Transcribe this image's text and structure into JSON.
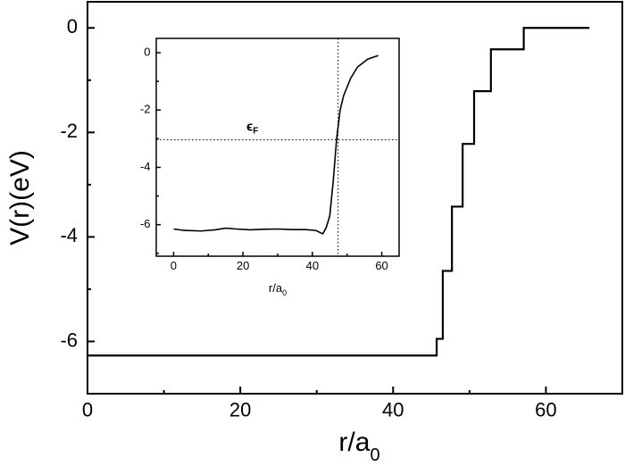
{
  "chart_data": [
    {
      "type": "line",
      "step": true,
      "xlabel": "r/a",
      "xlabel_sub": "0",
      "ylabel": "V(r)(eV)",
      "x": [
        0,
        45.7,
        45.7,
        46.5,
        46.5,
        47.7,
        47.7,
        49.1,
        49.1,
        50.6,
        50.6,
        52.8,
        52.8,
        57.1,
        57.1,
        65.7
      ],
      "values": [
        -6.27,
        -6.27,
        -5.95,
        -5.95,
        -4.65,
        -4.65,
        -3.42,
        -3.42,
        -2.22,
        -2.22,
        -1.21,
        -1.21,
        -0.41,
        -0.41,
        0,
        0
      ],
      "color": "#000000",
      "xlim": [
        0,
        70
      ],
      "ylim": [
        -7,
        0.5
      ],
      "xticks": [
        0,
        20,
        40,
        60
      ],
      "xminor": [
        10,
        30,
        50
      ],
      "yticks": [
        -6,
        -4,
        -2,
        0
      ],
      "yminor": [
        -7,
        -5,
        -3,
        -1
      ]
    },
    {
      "type": "line",
      "xlabel": "r/a",
      "xlabel_sub": "0",
      "x": [
        0,
        3,
        8,
        12,
        15,
        18,
        22,
        26,
        30,
        34,
        38,
        41,
        43,
        44,
        45,
        46,
        47,
        48,
        49,
        51,
        53,
        56,
        59
      ],
      "values": [
        -6.15,
        -6.2,
        -6.22,
        -6.18,
        -6.12,
        -6.15,
        -6.18,
        -6.16,
        -6.15,
        -6.17,
        -6.17,
        -6.2,
        -6.32,
        -6.1,
        -5.7,
        -4.5,
        -3.0,
        -2.0,
        -1.5,
        -0.9,
        -0.5,
        -0.22,
        -0.1
      ],
      "color": "#000000",
      "xlim": [
        -5,
        65
      ],
      "ylim": [
        -7.1,
        0.5
      ],
      "xticks": [
        0,
        20,
        40,
        60
      ],
      "xminor": [
        10,
        30,
        50
      ],
      "yticks": [
        -6,
        -4,
        -2,
        0
      ],
      "yminor": [
        -7,
        -5,
        -3,
        -1
      ],
      "fermi_x": 47.4,
      "fermi_y": -3.04,
      "fermi_label": "ϵ",
      "fermi_sub": "F"
    }
  ]
}
